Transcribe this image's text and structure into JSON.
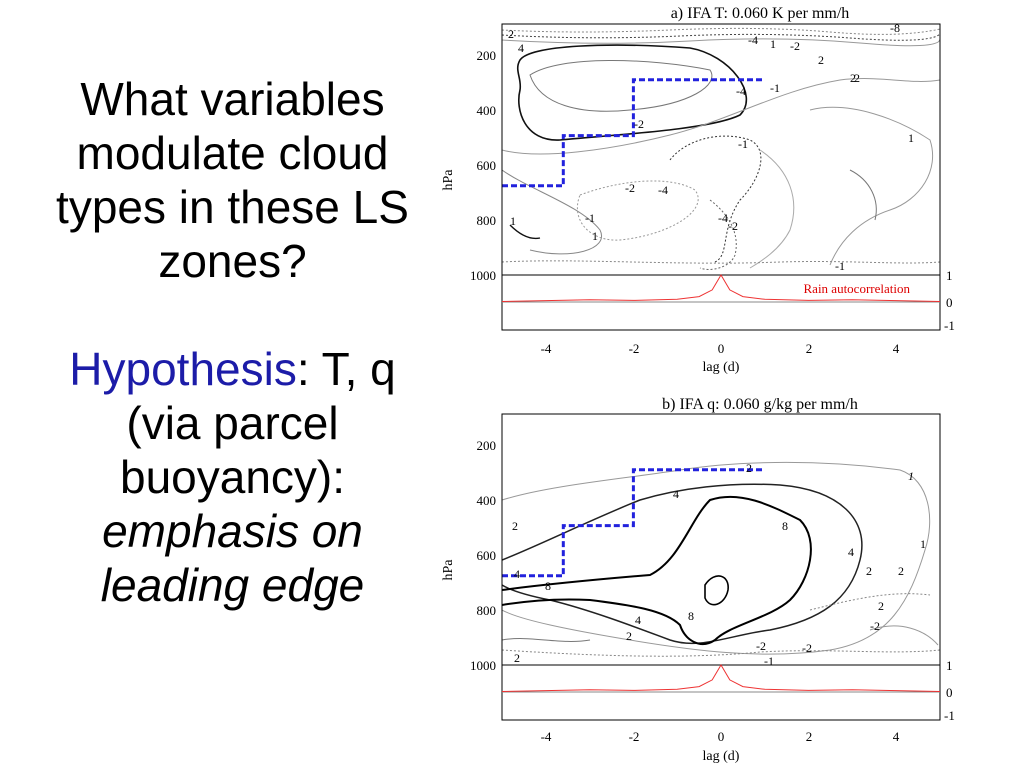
{
  "slide": {
    "question": "What variables modulate cloud types in these LS zones?",
    "hypothesis_word": "Hypothesis",
    "hypothesis_rest": ": T, q (via parcel buoyancy):",
    "emphasis": "emphasis on leading edge"
  },
  "chart_data": [
    {
      "type": "contour",
      "title": "a) IFA T: 0.060 K per mm/h",
      "xlabel": "lag (d)",
      "ylabel": "hPa",
      "xlim": [
        -5,
        5
      ],
      "ylim": [
        1000,
        100
      ],
      "x_ticks": [
        "-4",
        "-2",
        "0",
        "2",
        "4"
      ],
      "y_ticks": [
        "200",
        "400",
        "600",
        "800",
        "1000"
      ],
      "right_ticks": [
        "1",
        "0",
        "-1"
      ],
      "contour_labels": [
        "2",
        "4",
        "1",
        "-4",
        "-2",
        "-8",
        "2",
        "2",
        "-4",
        "-1",
        "-2",
        "-1",
        "1",
        "-4",
        "-1",
        "-2",
        "-4",
        "-2",
        "1",
        "1",
        "2",
        "-1"
      ],
      "annotation": "Rain autocorrelation",
      "dashed_box": [
        [
          -5,
          680
        ],
        [
          -3.6,
          680
        ],
        [
          -3.6,
          500
        ],
        [
          -2,
          500
        ],
        [
          -2,
          300
        ],
        [
          1,
          300
        ]
      ],
      "rain_autocorrelation": {
        "x": [
          -5,
          -4,
          -3,
          -2,
          -1,
          -0.5,
          -0.2,
          0,
          0.2,
          0.5,
          1,
          2,
          3,
          4,
          5
        ],
        "y": [
          0.02,
          0.05,
          0.08,
          0.06,
          0.1,
          0.2,
          0.45,
          1.0,
          0.45,
          0.2,
          0.1,
          0.06,
          0.08,
          0.05,
          0.02
        ]
      }
    },
    {
      "type": "contour",
      "title": "b) IFA q: 0.060 g/kg per mm/h",
      "xlabel": "lag (d)",
      "ylabel": "hPa",
      "xlim": [
        -5,
        5
      ],
      "ylim": [
        1000,
        100
      ],
      "x_ticks": [
        "-4",
        "-2",
        "0",
        "2",
        "4"
      ],
      "y_ticks": [
        "200",
        "400",
        "600",
        "800",
        "1000"
      ],
      "right_ticks": [
        "1",
        "0",
        "-1"
      ],
      "contour_labels": [
        "2",
        "1",
        "4",
        "8",
        "2",
        "4",
        "1",
        "4",
        "2",
        "2",
        "8",
        "4",
        "8",
        "2",
        "-2",
        "-1",
        "2",
        "-2",
        "2",
        "-2"
      ],
      "dashed_box": [
        [
          -5,
          680
        ],
        [
          -3.6,
          680
        ],
        [
          -3.6,
          500
        ],
        [
          -2,
          500
        ],
        [
          -2,
          300
        ],
        [
          1,
          300
        ]
      ],
      "rain_autocorrelation": {
        "x": [
          -5,
          -4,
          -3,
          -2,
          -1,
          -0.5,
          -0.2,
          0,
          0.2,
          0.5,
          1,
          2,
          3,
          4,
          5
        ],
        "y": [
          0.02,
          0.05,
          0.08,
          0.06,
          0.1,
          0.2,
          0.45,
          1.0,
          0.45,
          0.2,
          0.1,
          0.06,
          0.08,
          0.05,
          0.02
        ]
      }
    }
  ]
}
